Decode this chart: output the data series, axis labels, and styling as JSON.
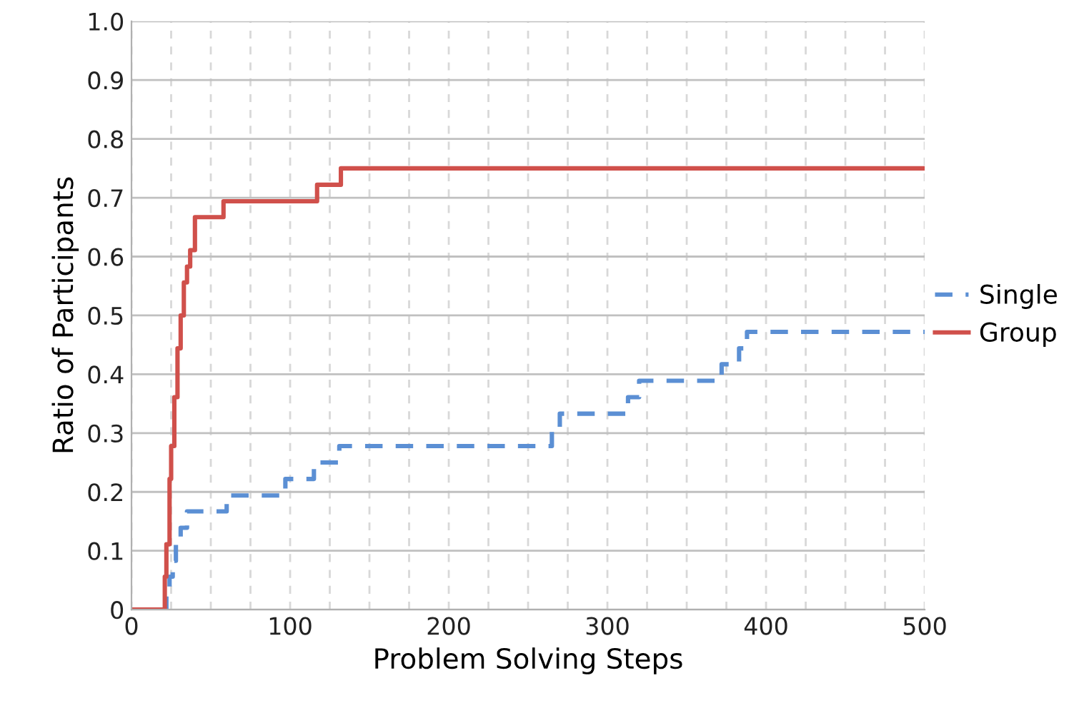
{
  "chart_data": {
    "type": "step",
    "xlabel": "Problem Solving Steps",
    "ylabel": "Ratio of Participants",
    "xlim": [
      0,
      500
    ],
    "ylim": [
      0,
      1.0
    ],
    "xticks": [
      0,
      {
        "value": 25,
        "label": null
      },
      {
        "value": 50,
        "label": null
      },
      {
        "value": 75,
        "label": null
      },
      100,
      {
        "value": 125,
        "label": null
      },
      {
        "value": 150,
        "label": null
      },
      {
        "value": 175,
        "label": null
      },
      200,
      {
        "value": 225,
        "label": null
      },
      {
        "value": 250,
        "label": null
      },
      {
        "value": 275,
        "label": null
      },
      300,
      {
        "value": 325,
        "label": null
      },
      {
        "value": 350,
        "label": null
      },
      {
        "value": 375,
        "label": null
      },
      400,
      {
        "value": 425,
        "label": null
      },
      {
        "value": 450,
        "label": null
      },
      {
        "value": 475,
        "label": null
      },
      500
    ],
    "yticks": [
      0,
      {
        "value": 0.1,
        "label": "0.1"
      },
      {
        "value": 0.2,
        "label": "0.2"
      },
      {
        "value": 0.3,
        "label": "0.3"
      },
      {
        "value": 0.4,
        "label": "0.4"
      },
      {
        "value": 0.5,
        "label": "0.5"
      },
      {
        "value": 0.6,
        "label": "0.6"
      },
      {
        "value": 0.7,
        "label": "0.7"
      },
      {
        "value": 0.8,
        "label": "0.8"
      },
      {
        "value": 0.9,
        "label": "0.9"
      },
      {
        "value": 1.0,
        "label": "1.0"
      }
    ],
    "grid": true,
    "legend": "right",
    "marker": "none",
    "series": [
      {
        "name": "Single",
        "color": "#5b8fd4",
        "line_style": "dashed",
        "x": [
          0,
          20,
          22,
          24,
          26,
          28,
          31,
          35,
          60,
          97,
          115,
          131,
          265,
          270,
          278,
          313,
          315,
          320,
          372,
          375,
          383,
          388,
          500
        ],
        "values": [
          0,
          0,
          0.028,
          0.056,
          0.083,
          0.111,
          0.139,
          0.167,
          0.194,
          0.222,
          0.25,
          0.278,
          0.306,
          0.333,
          0.333,
          0.361,
          0.361,
          0.389,
          0.417,
          0.417,
          0.444,
          0.472,
          0.472
        ]
      },
      {
        "name": "Group",
        "color": "#d0504b",
        "line_style": "solid",
        "x": [
          0,
          20,
          21,
          22,
          24,
          25,
          27,
          29,
          31,
          33,
          35,
          37,
          40,
          58,
          117,
          132,
          500
        ],
        "values": [
          0,
          0,
          0.056,
          0.111,
          0.222,
          0.278,
          0.361,
          0.444,
          0.5,
          0.556,
          0.583,
          0.611,
          0.667,
          0.694,
          0.722,
          0.75,
          0.75
        ]
      }
    ]
  }
}
